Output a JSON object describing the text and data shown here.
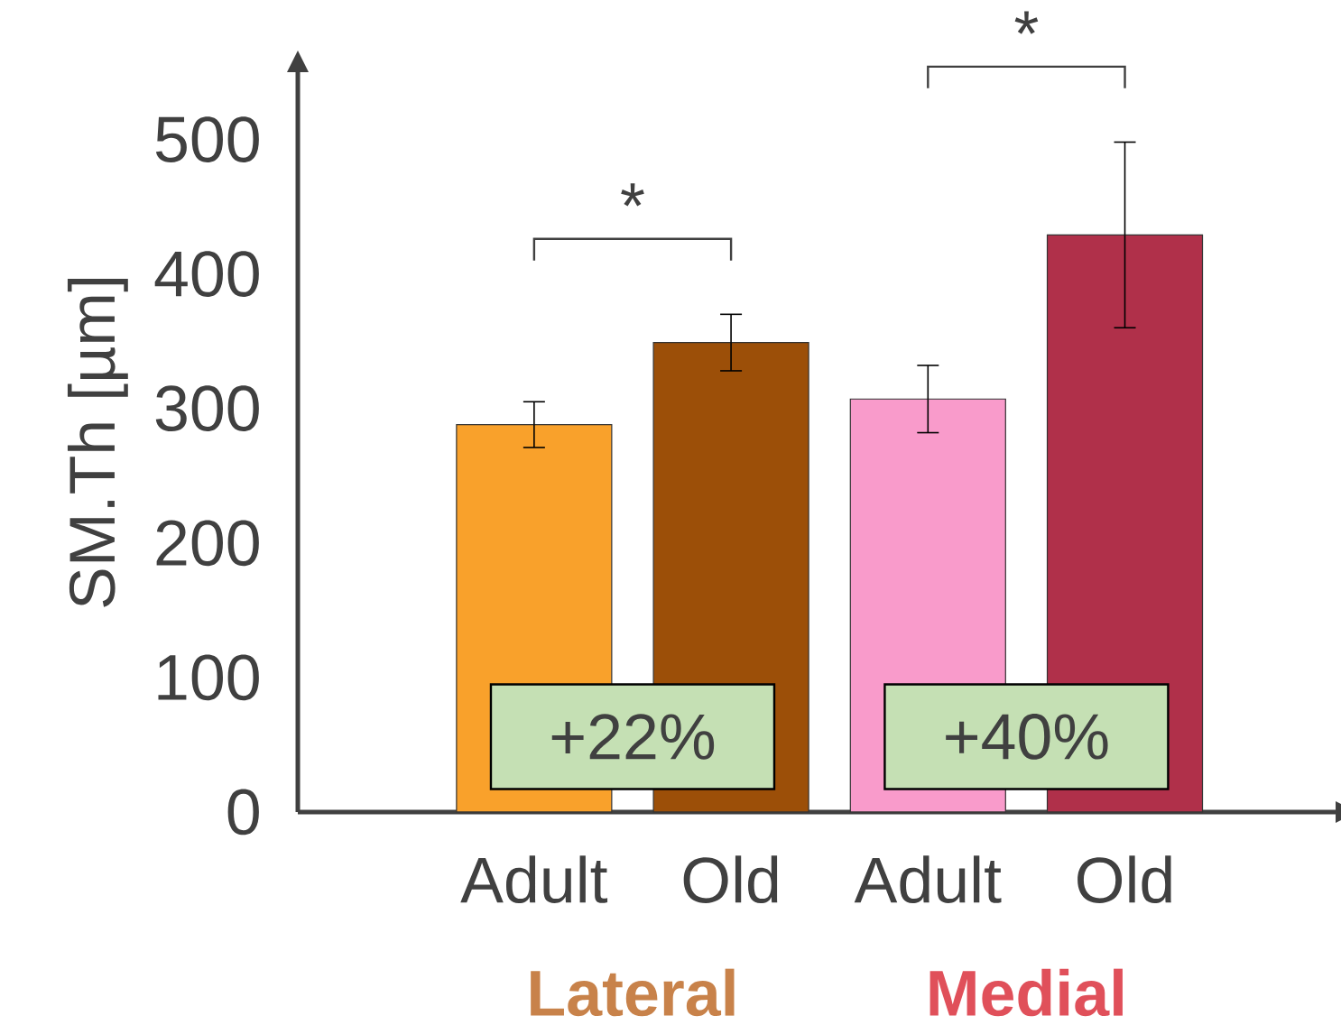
{
  "chart_data": {
    "type": "bar",
    "ylabel": "SM.Th [µm]",
    "categories": [
      "Adult",
      "Old",
      "Adult",
      "Old"
    ],
    "series": [
      {
        "type": "bar",
        "values": [
          288,
          349,
          307,
          429
        ],
        "errors": [
          17,
          21,
          25,
          69
        ],
        "colors": [
          "#f9a12b",
          "#9c4f08",
          "#f99bcb",
          "#b0304a"
        ]
      }
    ],
    "ylim": [
      0,
      550
    ],
    "yticks": [
      0,
      100,
      200,
      300,
      400,
      500
    ],
    "grid": false,
    "annotations": [
      "*",
      "*",
      "+22%",
      "+40%",
      "Lateral",
      "Medial"
    ]
  }
}
